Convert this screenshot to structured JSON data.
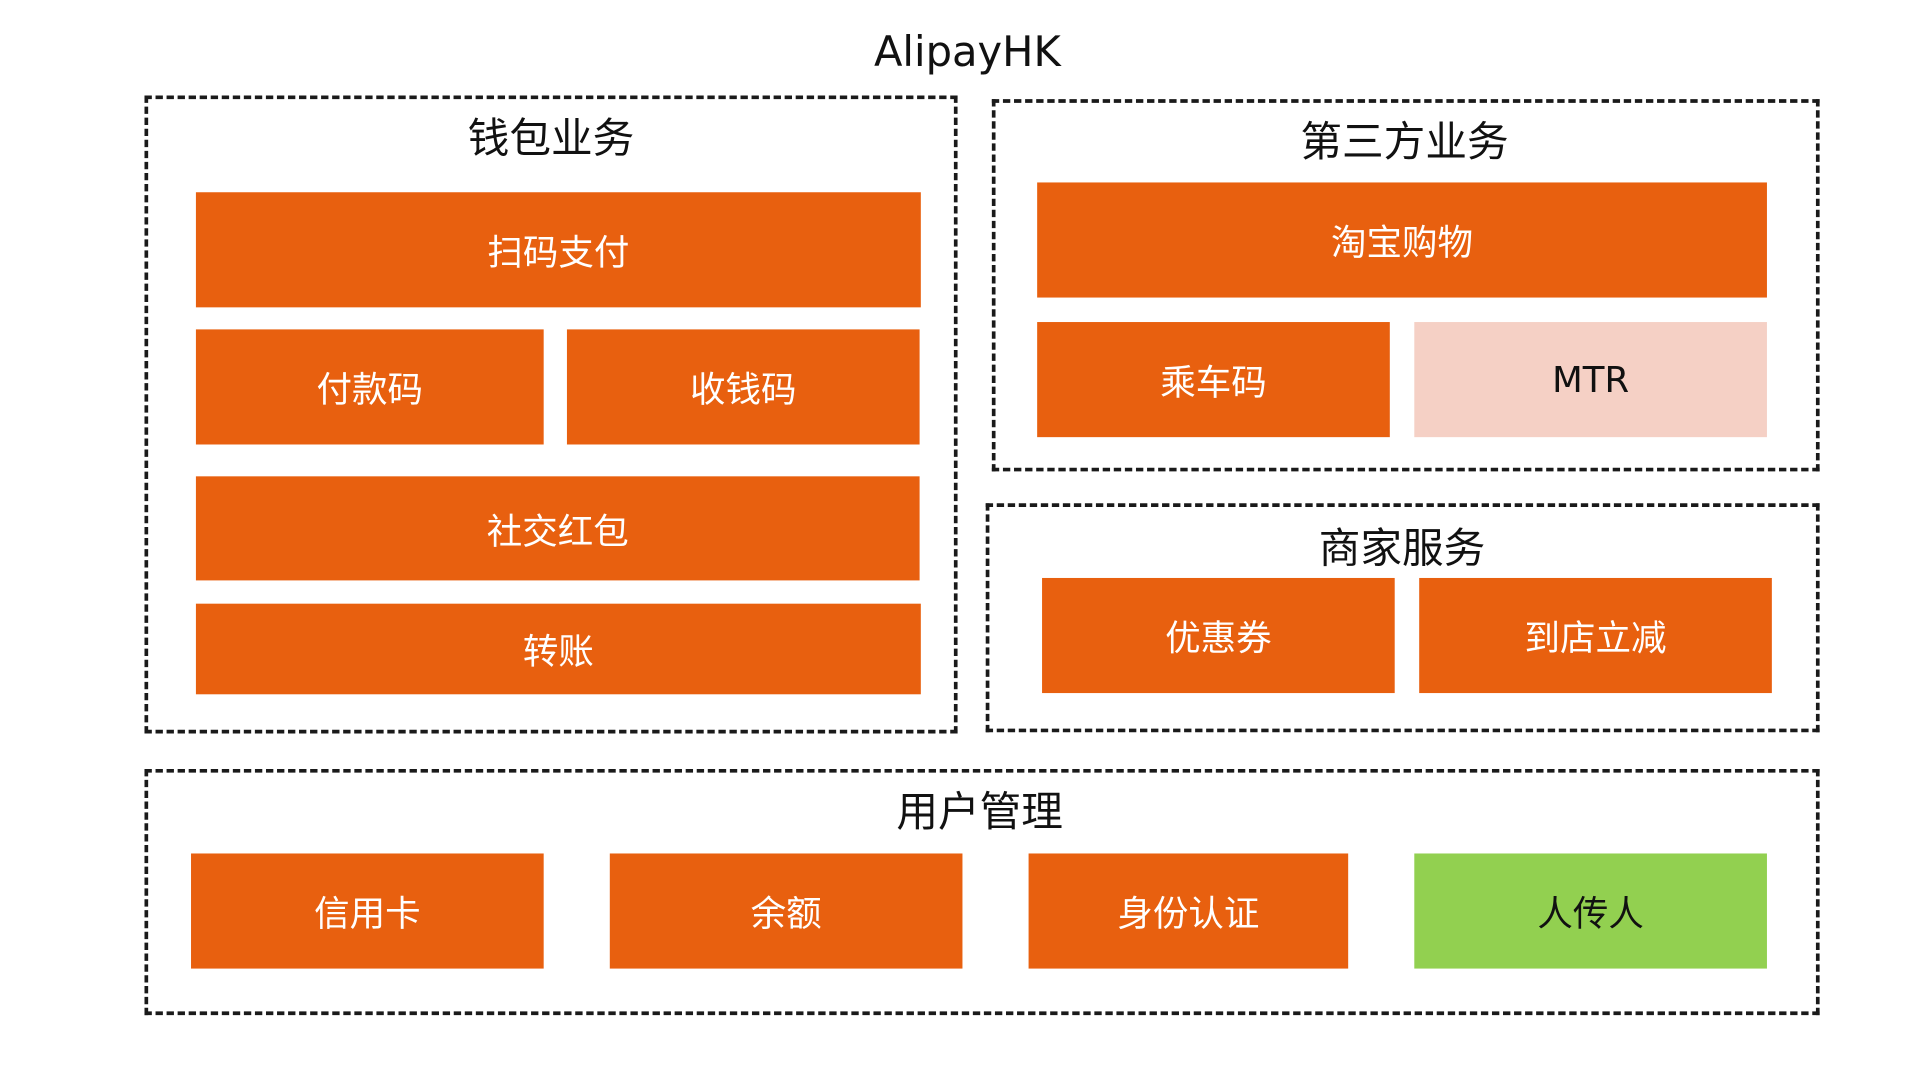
{
  "title": "AlipayHK",
  "groups": {
    "wallet": {
      "title": "钱包业务",
      "items": [
        "扫码支付",
        "付款码",
        "收钱码",
        "社交红包",
        "转账"
      ]
    },
    "third_party": {
      "title": "第三方业务",
      "items": [
        "淘宝购物",
        "乘车码",
        "MTR"
      ]
    },
    "merchant": {
      "title": "商家服务",
      "items": [
        "优惠券",
        "到店立减"
      ]
    },
    "user": {
      "title": "用户管理",
      "items": [
        "信用卡",
        "余额",
        "身份认证",
        "人传人"
      ]
    }
  },
  "colors": {
    "block": "#e8600f",
    "highlight_pink": "#f5d0c5",
    "highlight_green": "#92d050",
    "border": "#1a1a1a"
  }
}
